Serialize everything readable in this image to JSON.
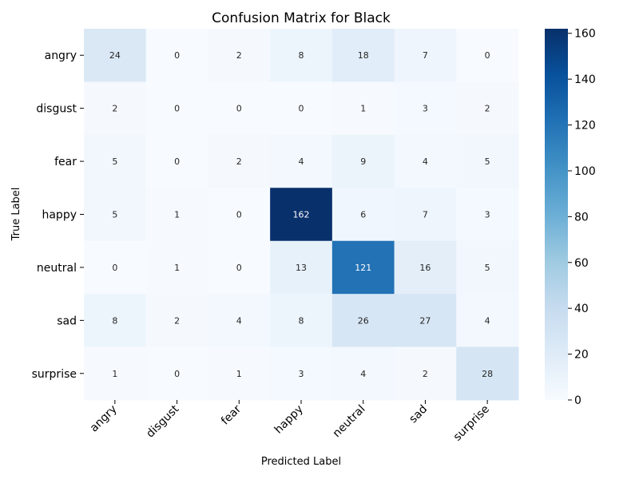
{
  "chart_data": {
    "type": "heatmap",
    "title": "Confusion Matrix for Black",
    "xlabel": "Predicted Label",
    "ylabel": "True Label",
    "x_categories": [
      "angry",
      "disgust",
      "fear",
      "happy",
      "neutral",
      "sad",
      "surprise"
    ],
    "y_categories": [
      "angry",
      "disgust",
      "fear",
      "happy",
      "neutral",
      "sad",
      "surprise"
    ],
    "values": [
      [
        24,
        0,
        2,
        8,
        18,
        7,
        0
      ],
      [
        2,
        0,
        0,
        0,
        1,
        3,
        2
      ],
      [
        5,
        0,
        2,
        4,
        9,
        4,
        5
      ],
      [
        5,
        1,
        0,
        162,
        6,
        7,
        3
      ],
      [
        0,
        1,
        0,
        13,
        121,
        16,
        5
      ],
      [
        8,
        2,
        4,
        8,
        26,
        27,
        4
      ],
      [
        1,
        0,
        1,
        3,
        4,
        2,
        28
      ]
    ],
    "color_range": [
      0,
      162
    ],
    "colormap": "Blues",
    "colorbar_ticks": [
      0,
      20,
      40,
      60,
      80,
      100,
      120,
      140,
      160
    ],
    "colorbar_tick_labels": [
      "0",
      "20",
      "40",
      "60",
      "80",
      "100",
      "120",
      "140",
      "160"
    ]
  }
}
